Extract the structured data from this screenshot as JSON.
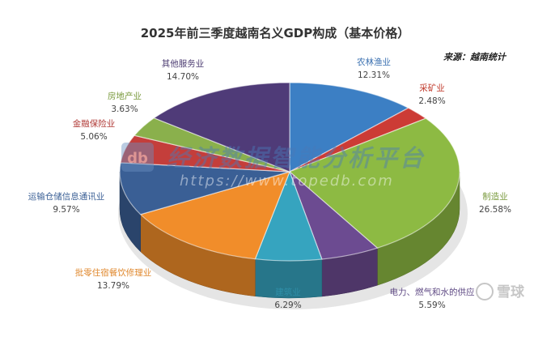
{
  "chart_data": {
    "type": "pie",
    "title": "2025年前三季度越南名义GDP构成（基本价格）",
    "source": "来源：越南统计",
    "unit": "%",
    "slices": [
      {
        "label": "农林渔业",
        "value": 12.31,
        "value_text": "12.31%",
        "color": "#3c7fc4",
        "label_color": "#3a70b0"
      },
      {
        "label": "采矿业",
        "value": 2.48,
        "value_text": "2.48%",
        "color": "#cc3b35",
        "label_color": "#c0392b"
      },
      {
        "label": "制造业",
        "value": 26.58,
        "value_text": "26.58%",
        "color": "#8dba43",
        "label_color": "#7a9a3e"
      },
      {
        "label": "电力、燃气和水的供应",
        "value": 5.59,
        "value_text": "5.59%",
        "color": "#6c4b91",
        "label_color": "#5f4a84"
      },
      {
        "label": "建筑业",
        "value": 6.29,
        "value_text": "6.29%",
        "color": "#36a4bf",
        "label_color": "#2f8fa8"
      },
      {
        "label": "批零住宿餐饮修理业",
        "value": 13.79,
        "value_text": "13.79%",
        "color": "#f18d2a",
        "label_color": "#e0892f"
      },
      {
        "label": "运输仓储信息通讯业",
        "value": 9.57,
        "value_text": "9.57%",
        "color": "#3a5f95",
        "label_color": "#3a5f95"
      },
      {
        "label": "金融保险业",
        "value": 5.06,
        "value_text": "5.06%",
        "color": "#c43e3b",
        "label_color": "#b03a36"
      },
      {
        "label": "房地产业",
        "value": 3.63,
        "value_text": "3.63%",
        "color": "#8ab04c",
        "label_color": "#7a9a3e"
      },
      {
        "label": "其他服务业",
        "value": 14.7,
        "value_text": "14.70%",
        "color": "#4f3b78",
        "label_color": "#4a3a70"
      }
    ],
    "start_angle_deg": -90,
    "legend": "none"
  },
  "watermark": {
    "text": "经济数据智能分析平台",
    "url": "https://www.topedb.com",
    "badge": "db"
  },
  "corner_watermark": {
    "text": "雪球"
  }
}
